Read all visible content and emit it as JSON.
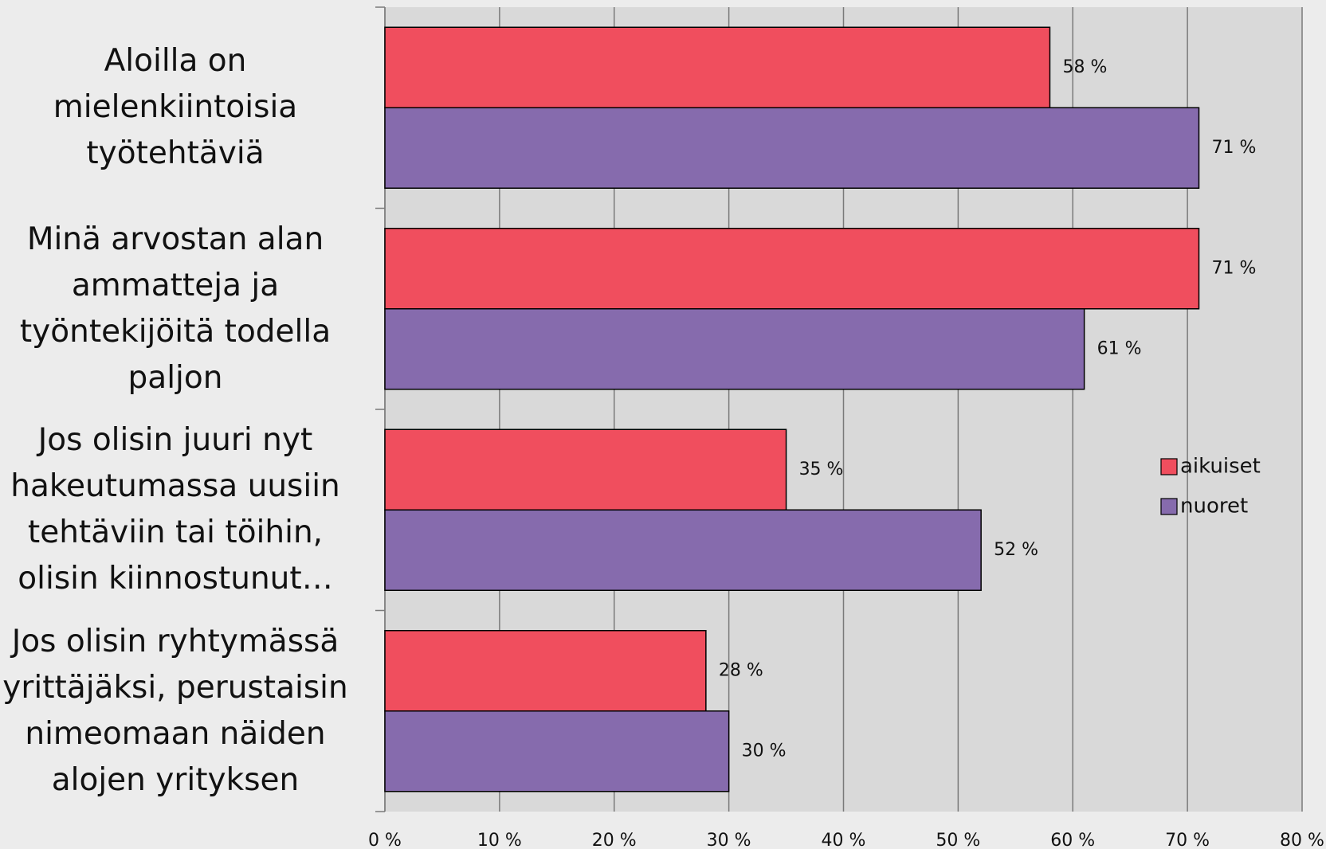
{
  "chart_data": {
    "type": "bar",
    "orientation": "horizontal",
    "categories": [
      "Aloilla on mielenkiintoisia työtehtäviä",
      "Minä arvostan alan ammatteja ja työntekijöitä todella paljon",
      "Jos olisin juuri nyt hakeutumassa uusiin tehtäviin tai töihin, olisin kiinnostunut…",
      "Jos olisin ryhtymässä yrittäjäksi, perustaisin nimeomaan näiden alojen yrityksen"
    ],
    "series": [
      {
        "name": "aikuiset",
        "color": "#f04e5e",
        "values": [
          58,
          71,
          35,
          28
        ],
        "value_labels": [
          "58 %",
          "71 %",
          "35 %",
          "28 %"
        ]
      },
      {
        "name": "nuoret",
        "color": "#866bad",
        "values": [
          71,
          61,
          52,
          30
        ],
        "value_labels": [
          "71 %",
          "61 %",
          "52 %",
          "30 %"
        ]
      }
    ],
    "xlim": [
      0,
      80
    ],
    "xticks": [
      {
        "value": 0,
        "label": "0 %"
      },
      {
        "value": 10,
        "label": "10 %"
      },
      {
        "value": 20,
        "label": "20 %"
      },
      {
        "value": 30,
        "label": "30 %"
      },
      {
        "value": 40,
        "label": "40 %"
      },
      {
        "value": 50,
        "label": "50 %"
      },
      {
        "value": 60,
        "label": "60 %"
      },
      {
        "value": 70,
        "label": "70 %"
      },
      {
        "value": 80,
        "label": "80 %"
      }
    ],
    "grid": true,
    "legend": "right"
  }
}
